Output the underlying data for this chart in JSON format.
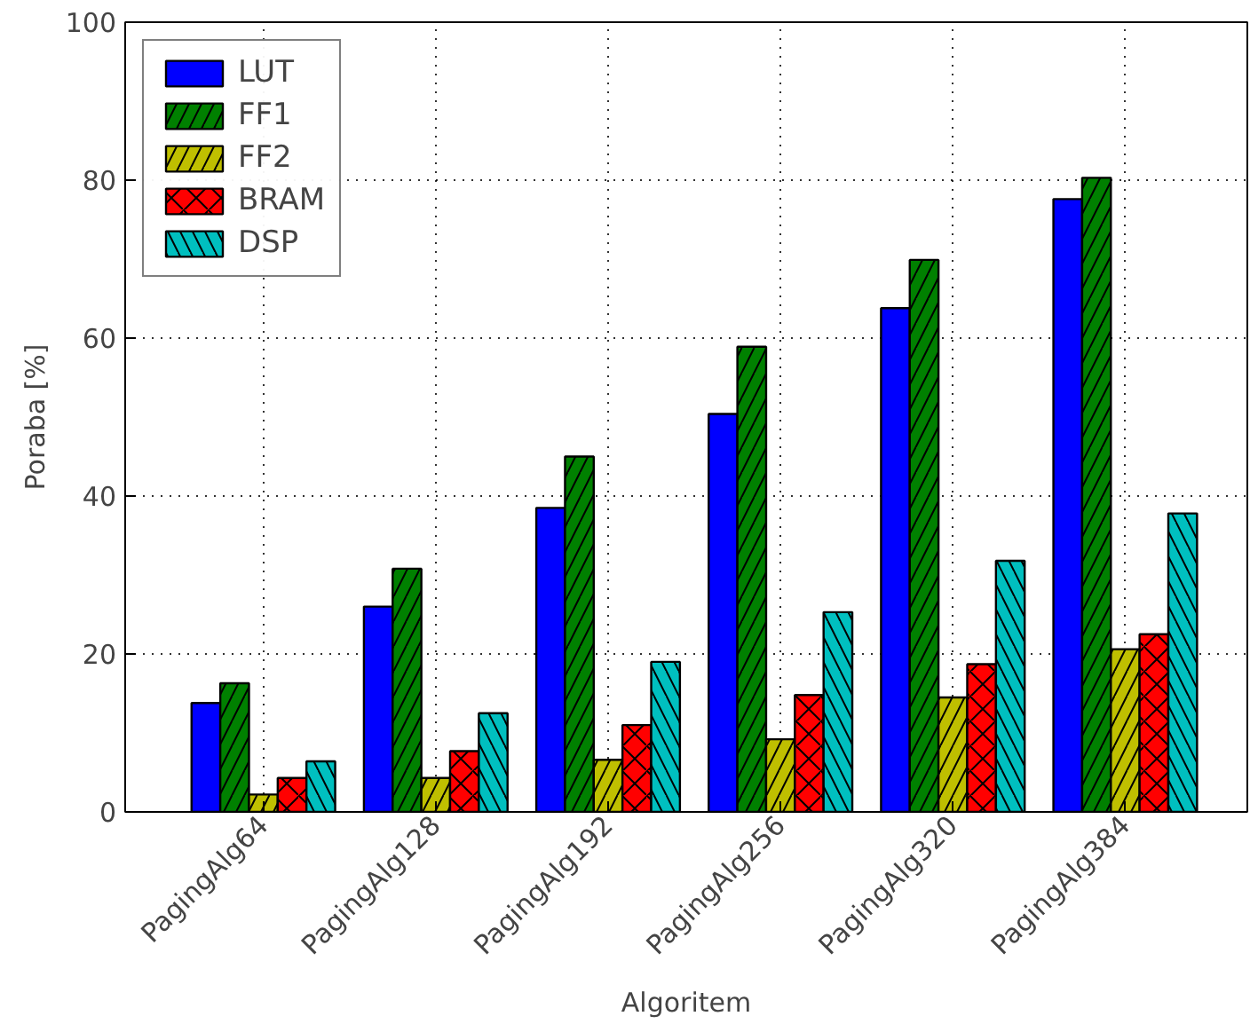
{
  "chart_data": {
    "type": "bar",
    "xlabel": "Algoritem",
    "ylabel": "Poraba [%]",
    "categories": [
      "PagingAlg64",
      "PagingAlg128",
      "PagingAlg192",
      "PagingAlg256",
      "PagingAlg320",
      "PagingAlg384"
    ],
    "series": [
      {
        "name": "LUT",
        "color": "#0000ff",
        "values": [
          13.8,
          26,
          38.5,
          50.4,
          63.8,
          77.6
        ]
      },
      {
        "name": "FF1",
        "color": "#008000",
        "values": [
          16.3,
          30.8,
          45,
          58.9,
          69.9,
          80.3
        ]
      },
      {
        "name": "FF2",
        "color": "#bfbf00",
        "values": [
          2.2,
          4.3,
          6.6,
          9.2,
          14.5,
          20.6
        ]
      },
      {
        "name": "BRAM",
        "color": "#ff0000",
        "values": [
          4.3,
          7.7,
          11,
          14.8,
          18.7,
          22.5
        ]
      },
      {
        "name": "DSP",
        "color": "#00bfbf",
        "values": [
          6.4,
          12.5,
          19,
          25.3,
          31.8,
          37.8
        ]
      }
    ],
    "ylim": [
      0,
      100
    ],
    "yticks": [
      0,
      20,
      40,
      60,
      80,
      100
    ],
    "grid": true,
    "legend": "top left"
  }
}
